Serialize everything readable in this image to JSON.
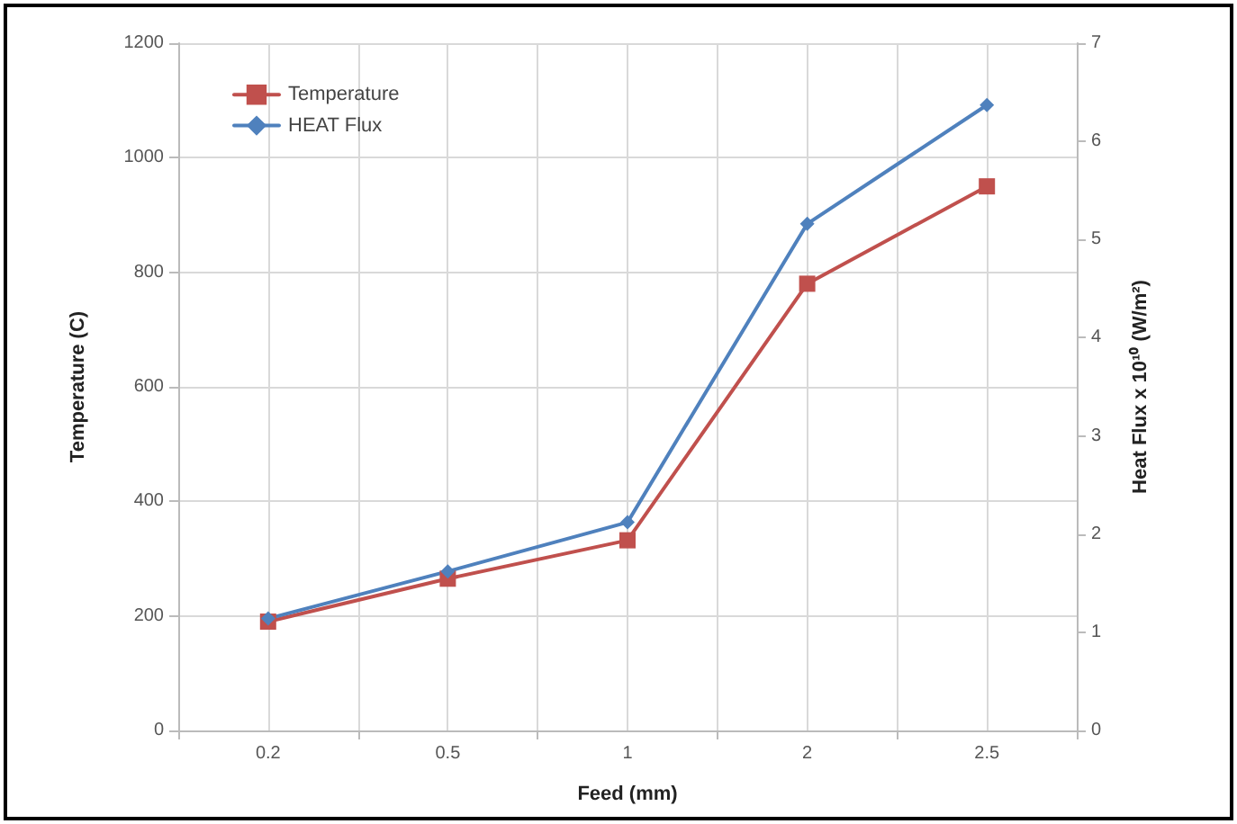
{
  "chart_data": {
    "type": "line",
    "xlabel": "Feed (mm)",
    "ylabel": "Temperature (C)",
    "y2label": "Heat Flux x 10¹⁰ (W/m²)",
    "categories": [
      "0.2",
      "0.5",
      "1",
      "2",
      "2.5"
    ],
    "series": [
      {
        "name": "Temperature",
        "color": "#c0504d",
        "marker": "square",
        "values": [
          190,
          265,
          332,
          780,
          950
        ]
      },
      {
        "name": "HEAT Flux",
        "color": "#4f81bd",
        "marker": "diamond",
        "axis": "y2",
        "values": [
          1.14,
          1.62,
          2.12,
          5.16,
          6.37
        ]
      }
    ],
    "ylim": [
      0,
      1200
    ],
    "yticks": [
      0,
      200,
      400,
      600,
      800,
      1000,
      1200
    ],
    "y2lim": [
      0,
      7
    ],
    "y2ticks": [
      0,
      1,
      2,
      3,
      4,
      5,
      6,
      7
    ],
    "grid": true,
    "legend": "top left",
    "line_style": "solid"
  }
}
